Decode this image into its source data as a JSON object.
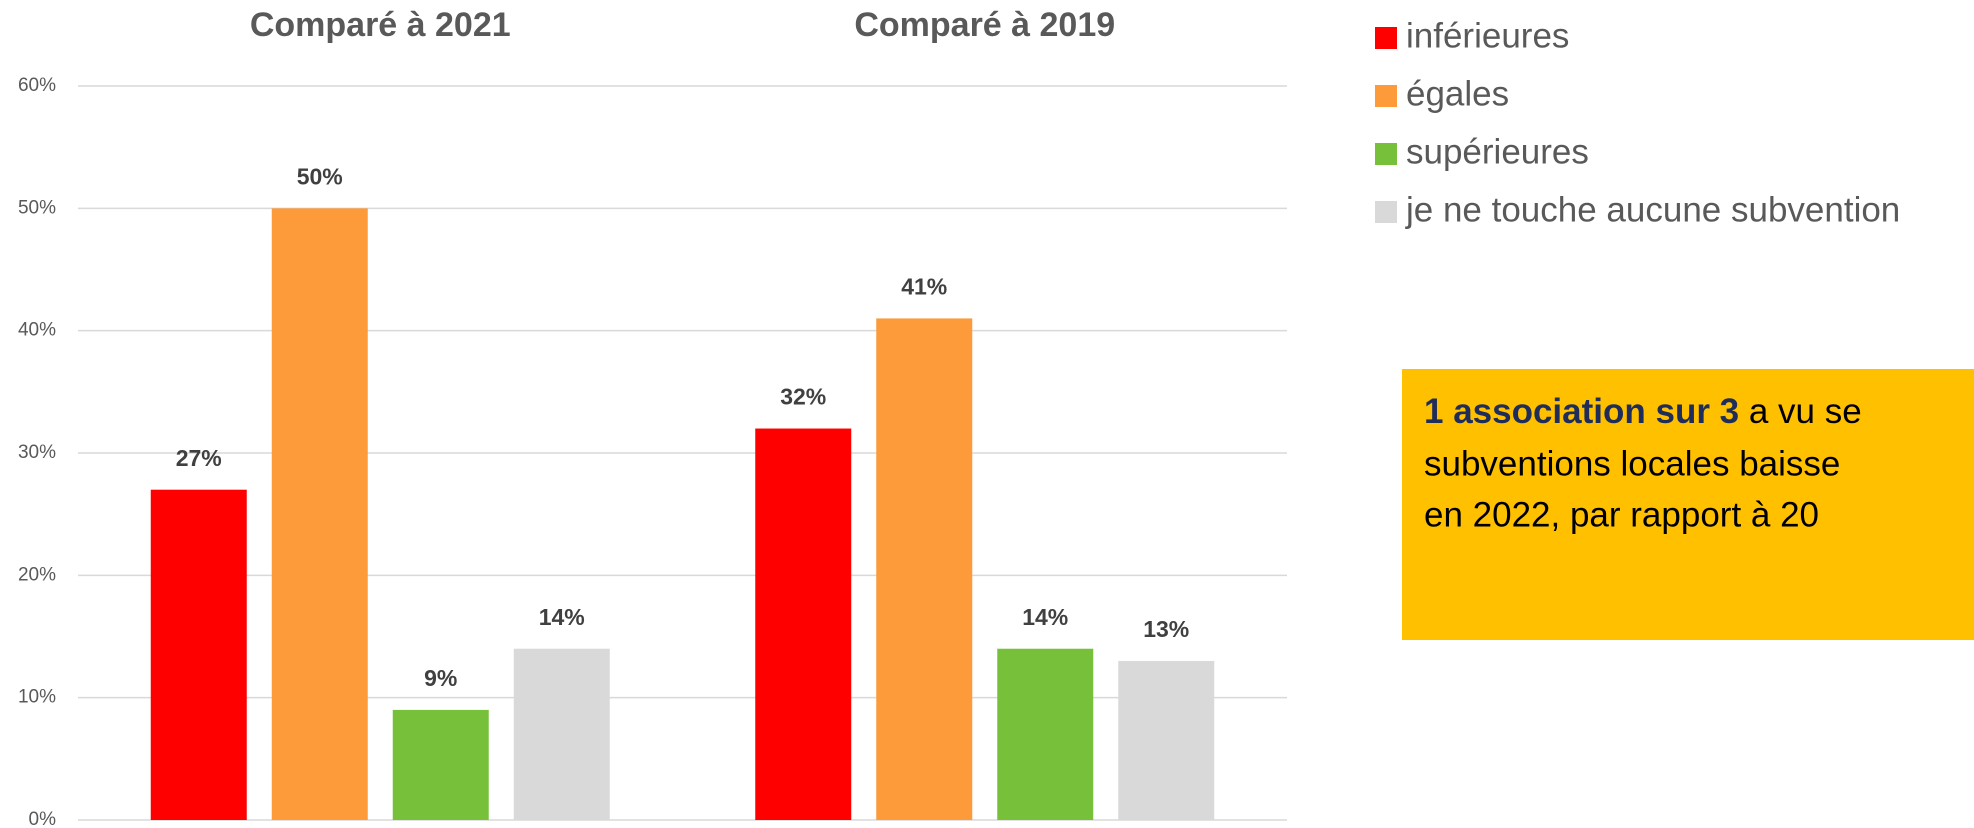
{
  "chart_data": {
    "type": "bar",
    "categories": [
      "Comparé à 2021",
      "Comparé à 2019"
    ],
    "series": [
      {
        "name": "inférieures",
        "color": "#ff0000",
        "values": [
          27,
          32
        ],
        "value_labels": [
          "27%",
          "32%"
        ]
      },
      {
        "name": "égales",
        "color": "#fd9a3a",
        "values": [
          50,
          41
        ],
        "value_labels": [
          "50%",
          "41%"
        ]
      },
      {
        "name": "supérieures",
        "color": "#77c13a",
        "values": [
          9,
          14
        ],
        "value_labels": [
          "9%",
          "14%"
        ]
      },
      {
        "name": "je ne touche aucune subvention",
        "color": "#d9d9d9",
        "values": [
          14,
          13
        ],
        "value_labels": [
          "14%",
          "13%"
        ]
      }
    ],
    "ylim": [
      0,
      60
    ],
    "yticks": [
      {
        "value": 0,
        "label": "0%"
      },
      {
        "value": 10,
        "label": "10%"
      },
      {
        "value": 20,
        "label": "20%"
      },
      {
        "value": 30,
        "label": "30%"
      },
      {
        "value": 40,
        "label": "40%"
      },
      {
        "value": 50,
        "label": "50%"
      },
      {
        "value": 60,
        "label": "60%"
      }
    ],
    "grid": true,
    "annotation": {
      "highlight": "1 association sur 3",
      "lines": [
        " a vu se",
        "subventions locales baisse",
        "en 2022, par rapport à 20"
      ]
    }
  }
}
